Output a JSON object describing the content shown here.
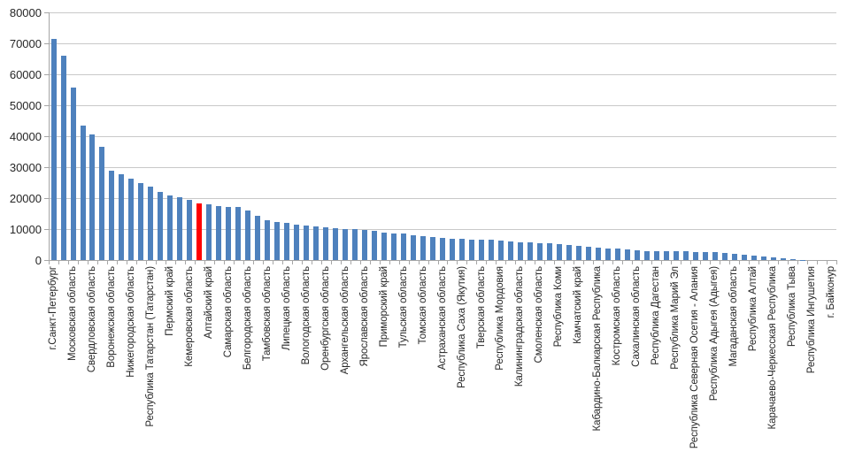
{
  "chart_data": {
    "type": "bar",
    "title": "",
    "xlabel": "",
    "ylabel": "",
    "ylim": [
      0,
      80000
    ],
    "ytick_step": 10000,
    "ytick_labels": [
      "0",
      "10000",
      "20000",
      "30000",
      "40000",
      "50000",
      "60000",
      "70000",
      "80000"
    ],
    "grid": "horizontal",
    "legend": "none",
    "bar_color": "#4e81bd",
    "highlight_color": "#ff0000",
    "highlight_index": 15,
    "labels_shown_every": 2,
    "axis_labels": [
      "г.Санкт-Петербург",
      "Московская область",
      "Свердловская область",
      "Воронежская область",
      "Нижегородская область",
      "Республика Татарстан (Татарстан)",
      "Пермский край",
      "Кемеровская область",
      "Алтайский край",
      "Самарская область",
      "Белгородская область",
      "Тамбовская область",
      "Липецкая область",
      "Вологодская область",
      "Оренбургская область",
      "Архангельская область",
      "Ярославская область",
      "Приморский край",
      "Тульская область",
      "Томская область",
      "Астраханская область",
      "Республика Саха (Якутия)",
      "Тверская область",
      "Республика Мордовия",
      "Калининградская область",
      "Смоленская область",
      "Республика Коми",
      "Камчатский край",
      "Кабардино-Балкарская Республика",
      "Костромская область",
      "Сахалинская область",
      "Республика Дагестан",
      "Республика Марий Эл",
      "Республика Северная Осетия - Алания",
      "Республика Адыгея (Адыгея)",
      "Магаданская область",
      "Республика Алтай",
      "Карачаево-Черкесская Республика",
      "Республика Тыва",
      "Республика Ингушетия",
      "г. Байконур"
    ],
    "values": [
      71400,
      65900,
      55800,
      43400,
      40500,
      36700,
      28800,
      27600,
      26200,
      24800,
      23600,
      22000,
      20800,
      20200,
      19400,
      18300,
      17900,
      17400,
      17200,
      17100,
      15900,
      14400,
      13000,
      12300,
      11900,
      11500,
      11100,
      10800,
      10500,
      10300,
      10000,
      9900,
      9700,
      9300,
      8900,
      8700,
      8500,
      8000,
      7700,
      7400,
      7200,
      7000,
      6900,
      6700,
      6600,
      6500,
      6300,
      6100,
      5800,
      5600,
      5500,
      5300,
      5100,
      4900,
      4700,
      4400,
      4000,
      3800,
      3600,
      3400,
      3100,
      3000,
      2900,
      2850,
      2800,
      2750,
      2700,
      2600,
      2500,
      2300,
      2000,
      1800,
      1500,
      1200,
      900,
      500,
      300,
      150,
      50,
      0,
      0
    ],
    "colors": {
      "gridline": "#c9c9c9",
      "axis": "#a6a6a6",
      "text": "#262626"
    }
  }
}
